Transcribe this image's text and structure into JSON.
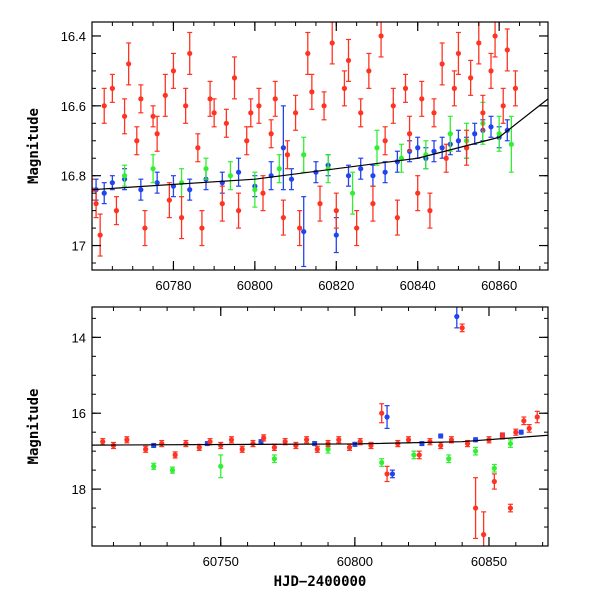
{
  "chart_data": [
    {
      "type": "scatter",
      "title": "",
      "xlabel": "",
      "ylabel": "Magnitude",
      "xlim": [
        60760,
        60872
      ],
      "ylim": [
        17.07,
        16.36
      ],
      "y_inverted": true,
      "grid": false,
      "x_ticks": [
        60780,
        60800,
        60820,
        60840,
        60860
      ],
      "x_tick_labels": [
        "60780",
        "60800",
        "60820",
        "60840",
        "60860"
      ],
      "y_ticks": [
        16.4,
        16.6,
        16.8,
        17
      ],
      "y_tick_labels": [
        "16.4",
        "16.6",
        "16.8",
        "17"
      ],
      "trend_line": [
        [
          60760,
          16.84
        ],
        [
          60800,
          16.81
        ],
        [
          60840,
          16.75
        ],
        [
          60860,
          16.69
        ],
        [
          60872,
          16.58
        ]
      ],
      "series": [
        {
          "color": "#2244ee",
          "points": [
            [
              60761,
              16.84,
              0.03
            ],
            [
              60763,
              16.85,
              0.03
            ],
            [
              60765,
              16.82,
              0.02
            ],
            [
              60768,
              16.81,
              0.03
            ],
            [
              60772,
              16.84,
              0.03
            ],
            [
              60776,
              16.82,
              0.03
            ],
            [
              60780,
              16.83,
              0.03
            ],
            [
              60784,
              16.84,
              0.03
            ],
            [
              60788,
              16.81,
              0.03
            ],
            [
              60792,
              16.82,
              0.03
            ],
            [
              60796,
              16.79,
              0.04
            ],
            [
              60800,
              16.83,
              0.03
            ],
            [
              60804,
              16.8,
              0.04
            ],
            [
              60807,
              16.72,
              0.12
            ],
            [
              60809,
              16.81,
              0.03
            ],
            [
              60812,
              16.96,
              0.1
            ],
            [
              60815,
              16.79,
              0.03
            ],
            [
              60818,
              16.77,
              0.03
            ],
            [
              60820,
              16.97,
              0.05
            ],
            [
              60823,
              16.8,
              0.03
            ],
            [
              60826,
              16.78,
              0.03
            ],
            [
              60829,
              16.8,
              0.03
            ],
            [
              60832,
              16.79,
              0.03
            ],
            [
              60835,
              16.76,
              0.03
            ],
            [
              60838,
              16.73,
              0.03
            ],
            [
              60840,
              16.72,
              0.03
            ],
            [
              60842,
              16.75,
              0.03
            ],
            [
              60844,
              16.73,
              0.03
            ],
            [
              60846,
              16.72,
              0.03
            ],
            [
              60848,
              16.71,
              0.03
            ],
            [
              60850,
              16.7,
              0.03
            ],
            [
              60852,
              16.72,
              0.03
            ],
            [
              60854,
              16.68,
              0.03
            ],
            [
              60856,
              16.67,
              0.03
            ],
            [
              60858,
              16.66,
              0.03
            ],
            [
              60860,
              16.69,
              0.03
            ],
            [
              60862,
              16.67,
              0.03
            ]
          ]
        },
        {
          "color": "#33ee33",
          "points": [
            [
              60768,
              16.8,
              0.03
            ],
            [
              60775,
              16.78,
              0.04
            ],
            [
              60782,
              16.82,
              0.04
            ],
            [
              60788,
              16.78,
              0.03
            ],
            [
              60794,
              16.8,
              0.04
            ],
            [
              60800,
              16.84,
              0.05
            ],
            [
              60806,
              16.78,
              0.04
            ],
            [
              60812,
              16.74,
              0.05
            ],
            [
              60818,
              16.78,
              0.04
            ],
            [
              60824,
              16.85,
              0.06
            ],
            [
              60830,
              16.72,
              0.05
            ],
            [
              60836,
              16.75,
              0.04
            ],
            [
              60842,
              16.74,
              0.04
            ],
            [
              60848,
              16.68,
              0.05
            ],
            [
              60852,
              16.7,
              0.05
            ],
            [
              60856,
              16.65,
              0.06
            ],
            [
              60860,
              16.68,
              0.05
            ],
            [
              60863,
              16.71,
              0.08
            ]
          ]
        },
        {
          "color": "#ff3322",
          "points": [
            [
              60760,
              16.84,
              0.03
            ],
            [
              60761,
              16.88,
              0.04
            ],
            [
              60762,
              16.97,
              0.06
            ],
            [
              60763,
              16.6,
              0.05
            ],
            [
              60765,
              16.55,
              0.04
            ],
            [
              60766,
              16.9,
              0.04
            ],
            [
              60768,
              16.63,
              0.05
            ],
            [
              60769,
              16.48,
              0.06
            ],
            [
              60771,
              16.7,
              0.04
            ],
            [
              60772,
              16.58,
              0.04
            ],
            [
              60773,
              16.95,
              0.05
            ],
            [
              60775,
              16.63,
              0.03
            ],
            [
              60776,
              16.68,
              0.05
            ],
            [
              60778,
              16.57,
              0.06
            ],
            [
              60779,
              16.87,
              0.05
            ],
            [
              60780,
              16.5,
              0.05
            ],
            [
              60782,
              16.92,
              0.06
            ],
            [
              60783,
              16.6,
              0.05
            ],
            [
              60784,
              16.45,
              0.06
            ],
            [
              60786,
              16.72,
              0.04
            ],
            [
              60787,
              16.95,
              0.05
            ],
            [
              60789,
              16.58,
              0.05
            ],
            [
              60790,
              16.62,
              0.04
            ],
            [
              60792,
              16.88,
              0.05
            ],
            [
              60793,
              16.65,
              0.04
            ],
            [
              60795,
              16.52,
              0.06
            ],
            [
              60796,
              16.9,
              0.05
            ],
            [
              60798,
              16.7,
              0.04
            ],
            [
              60799,
              16.62,
              0.04
            ],
            [
              60801,
              16.6,
              0.05
            ],
            [
              60802,
              16.85,
              0.05
            ],
            [
              60804,
              16.68,
              0.04
            ],
            [
              60805,
              16.58,
              0.05
            ],
            [
              60807,
              16.92,
              0.05
            ],
            [
              60808,
              16.74,
              0.04
            ],
            [
              60810,
              16.62,
              0.05
            ],
            [
              60811,
              16.95,
              0.05
            ],
            [
              60813,
              16.45,
              0.06
            ],
            [
              60814,
              16.56,
              0.05
            ],
            [
              60816,
              16.88,
              0.05
            ],
            [
              60817,
              16.6,
              0.04
            ],
            [
              60819,
              16.42,
              0.06
            ],
            [
              60820,
              16.9,
              0.05
            ],
            [
              60822,
              16.55,
              0.05
            ],
            [
              60823,
              16.47,
              0.06
            ],
            [
              60825,
              16.95,
              0.05
            ],
            [
              60826,
              16.62,
              0.04
            ],
            [
              60828,
              16.5,
              0.05
            ],
            [
              60829,
              16.88,
              0.05
            ],
            [
              60831,
              16.4,
              0.06
            ],
            [
              60832,
              16.7,
              0.04
            ],
            [
              60834,
              16.6,
              0.05
            ],
            [
              60835,
              16.92,
              0.05
            ],
            [
              60837,
              16.55,
              0.04
            ],
            [
              60838,
              16.68,
              0.05
            ],
            [
              60840,
              16.85,
              0.05
            ],
            [
              60841,
              16.58,
              0.05
            ],
            [
              60843,
              16.9,
              0.05
            ],
            [
              60844,
              16.62,
              0.04
            ],
            [
              60846,
              16.48,
              0.06
            ],
            [
              60847,
              16.75,
              0.04
            ],
            [
              60849,
              16.55,
              0.05
            ],
            [
              60850,
              16.45,
              0.06
            ],
            [
              60852,
              16.72,
              0.05
            ],
            [
              60853,
              16.52,
              0.05
            ],
            [
              60855,
              16.42,
              0.06
            ],
            [
              60856,
              16.62,
              0.05
            ],
            [
              60858,
              16.5,
              0.05
            ],
            [
              60859,
              16.4,
              0.06
            ],
            [
              60861,
              16.6,
              0.05
            ],
            [
              60862,
              16.44,
              0.06
            ],
            [
              60864,
              16.55,
              0.05
            ]
          ]
        }
      ]
    },
    {
      "type": "scatter",
      "title": "",
      "xlabel": "HJD−2400000",
      "ylabel": "Magnitude",
      "xlim": [
        60702,
        60872
      ],
      "ylim": [
        19.5,
        13.2
      ],
      "y_inverted": true,
      "grid": false,
      "x_ticks": [
        60750,
        60800,
        60850
      ],
      "x_tick_labels": [
        "60750",
        "60800",
        "60850"
      ],
      "y_ticks": [
        14,
        16,
        18
      ],
      "y_tick_labels": [
        "14",
        "16",
        "18"
      ],
      "trend_line": [
        [
          60702,
          16.84
        ],
        [
          60800,
          16.81
        ],
        [
          60840,
          16.75
        ],
        [
          60872,
          16.58
        ]
      ],
      "series": [
        {
          "color": "#2244ee",
          "points": [
            [
              60725,
              16.85,
              0.05
            ],
            [
              60745,
              16.8,
              0.05
            ],
            [
              60765,
              16.75,
              0.05
            ],
            [
              60785,
              16.8,
              0.05
            ],
            [
              60800,
              16.82,
              0.05
            ],
            [
              60812,
              16.1,
              0.3
            ],
            [
              60814,
              17.6,
              0.1
            ],
            [
              60825,
              16.8,
              0.05
            ],
            [
              60832,
              16.6,
              0.05
            ],
            [
              60838,
              13.45,
              0.3
            ],
            [
              60845,
              16.7,
              0.05
            ],
            [
              60855,
              16.6,
              0.05
            ],
            [
              60862,
              16.5,
              0.05
            ]
          ]
        },
        {
          "color": "#33ee33",
          "points": [
            [
              60725,
              17.4,
              0.08
            ],
            [
              60732,
              17.5,
              0.08
            ],
            [
              60750,
              17.4,
              0.3
            ],
            [
              60770,
              17.2,
              0.1
            ],
            [
              60790,
              16.95,
              0.1
            ],
            [
              60810,
              17.3,
              0.1
            ],
            [
              60822,
              17.1,
              0.1
            ],
            [
              60835,
              17.2,
              0.1
            ],
            [
              60845,
              17.0,
              0.1
            ],
            [
              60852,
              17.45,
              0.1
            ],
            [
              60858,
              16.8,
              0.1
            ]
          ]
        },
        {
          "color": "#ff3322",
          "points": [
            [
              60706,
              16.75,
              0.08
            ],
            [
              60710,
              16.85,
              0.08
            ],
            [
              60715,
              16.7,
              0.08
            ],
            [
              60722,
              16.95,
              0.08
            ],
            [
              60728,
              16.8,
              0.08
            ],
            [
              60733,
              17.1,
              0.08
            ],
            [
              60737,
              16.8,
              0.08
            ],
            [
              60742,
              16.9,
              0.08
            ],
            [
              60746,
              16.75,
              0.08
            ],
            [
              60750,
              16.85,
              0.08
            ],
            [
              60754,
              16.7,
              0.08
            ],
            [
              60758,
              16.95,
              0.08
            ],
            [
              60762,
              16.8,
              0.08
            ],
            [
              60766,
              16.65,
              0.08
            ],
            [
              60770,
              16.9,
              0.08
            ],
            [
              60774,
              16.75,
              0.08
            ],
            [
              60778,
              16.85,
              0.08
            ],
            [
              60782,
              16.7,
              0.08
            ],
            [
              60786,
              16.95,
              0.08
            ],
            [
              60790,
              16.8,
              0.08
            ],
            [
              60794,
              16.7,
              0.08
            ],
            [
              60798,
              16.9,
              0.08
            ],
            [
              60802,
              16.75,
              0.08
            ],
            [
              60806,
              16.85,
              0.08
            ],
            [
              60810,
              16.0,
              0.25
            ],
            [
              60812,
              17.6,
              0.2
            ],
            [
              60816,
              16.8,
              0.08
            ],
            [
              60820,
              16.7,
              0.08
            ],
            [
              60824,
              17.1,
              0.1
            ],
            [
              60828,
              16.75,
              0.08
            ],
            [
              60832,
              16.85,
              0.08
            ],
            [
              60836,
              16.7,
              0.08
            ],
            [
              60840,
              13.75,
              0.1
            ],
            [
              60842,
              16.8,
              0.08
            ],
            [
              60845,
              18.5,
              0.8
            ],
            [
              60848,
              19.2,
              0.6
            ],
            [
              60850,
              16.7,
              0.08
            ],
            [
              60852,
              17.8,
              0.2
            ],
            [
              60855,
              16.6,
              0.08
            ],
            [
              60858,
              18.5,
              0.1
            ],
            [
              60860,
              16.5,
              0.08
            ],
            [
              60863,
              16.2,
              0.1
            ],
            [
              60865,
              16.4,
              0.1
            ],
            [
              60868,
              16.1,
              0.15
            ]
          ]
        }
      ]
    }
  ]
}
